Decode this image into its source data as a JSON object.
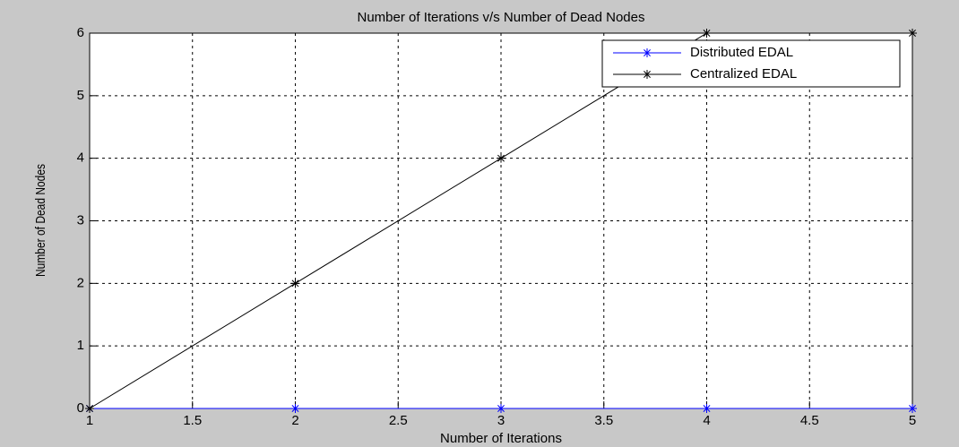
{
  "chart_data": {
    "type": "line",
    "title": "Number of Iterations v/s Number of Dead Nodes",
    "x_label": "Number of Iterations",
    "y_label": "Number of Dead Nodes",
    "x": [
      1,
      2,
      3,
      4,
      5
    ],
    "series": [
      {
        "name": "Distributed EDAL",
        "color": "#0000ff",
        "values": [
          0,
          0,
          0,
          0,
          0
        ]
      },
      {
        "name": "Centralized EDAL",
        "color": "#000000",
        "values": [
          0,
          2,
          4,
          6,
          6
        ]
      }
    ],
    "xlim": [
      1,
      5
    ],
    "xticks": [
      1,
      1.5,
      2,
      2.5,
      3,
      3.5,
      4,
      4.5,
      5
    ],
    "ylim": [
      0,
      6
    ],
    "yticks": [
      0,
      1,
      2,
      3,
      4,
      5,
      6
    ],
    "grid": true,
    "legend": "northeast"
  }
}
